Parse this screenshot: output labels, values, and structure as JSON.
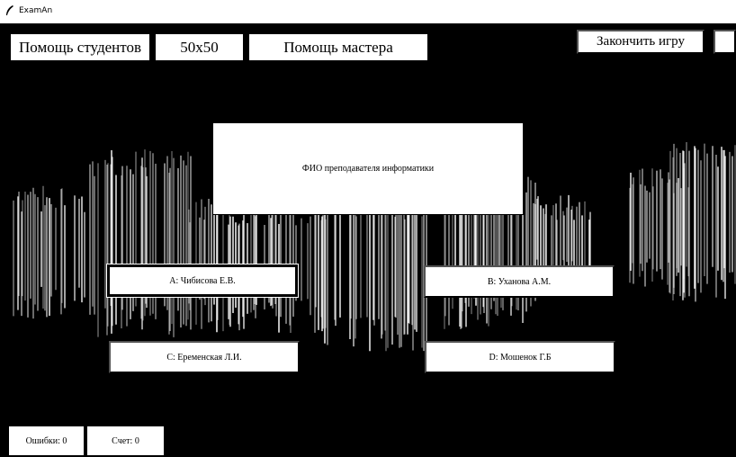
{
  "window": {
    "title": "ExamAn",
    "icon": "feather-icon"
  },
  "lifelines": {
    "students": "Помощь студентов",
    "fifty": "50x50",
    "master": "Помощь мастера"
  },
  "actions": {
    "end_game": "Закончить игру",
    "extra": ""
  },
  "question": "ФИО преподавателя информатики",
  "answers": {
    "a": "A: Чибисова Е.В.",
    "b": "B: Уханова А.М.",
    "c": "C: Еременская Л.И.",
    "d": "D: Мошенок Г.Б"
  },
  "stats": {
    "errors": "Ошибки: 0",
    "score": "Счет: 0"
  },
  "colors": {
    "background": "#000000",
    "button": "#ffffff",
    "text": "#000000"
  }
}
